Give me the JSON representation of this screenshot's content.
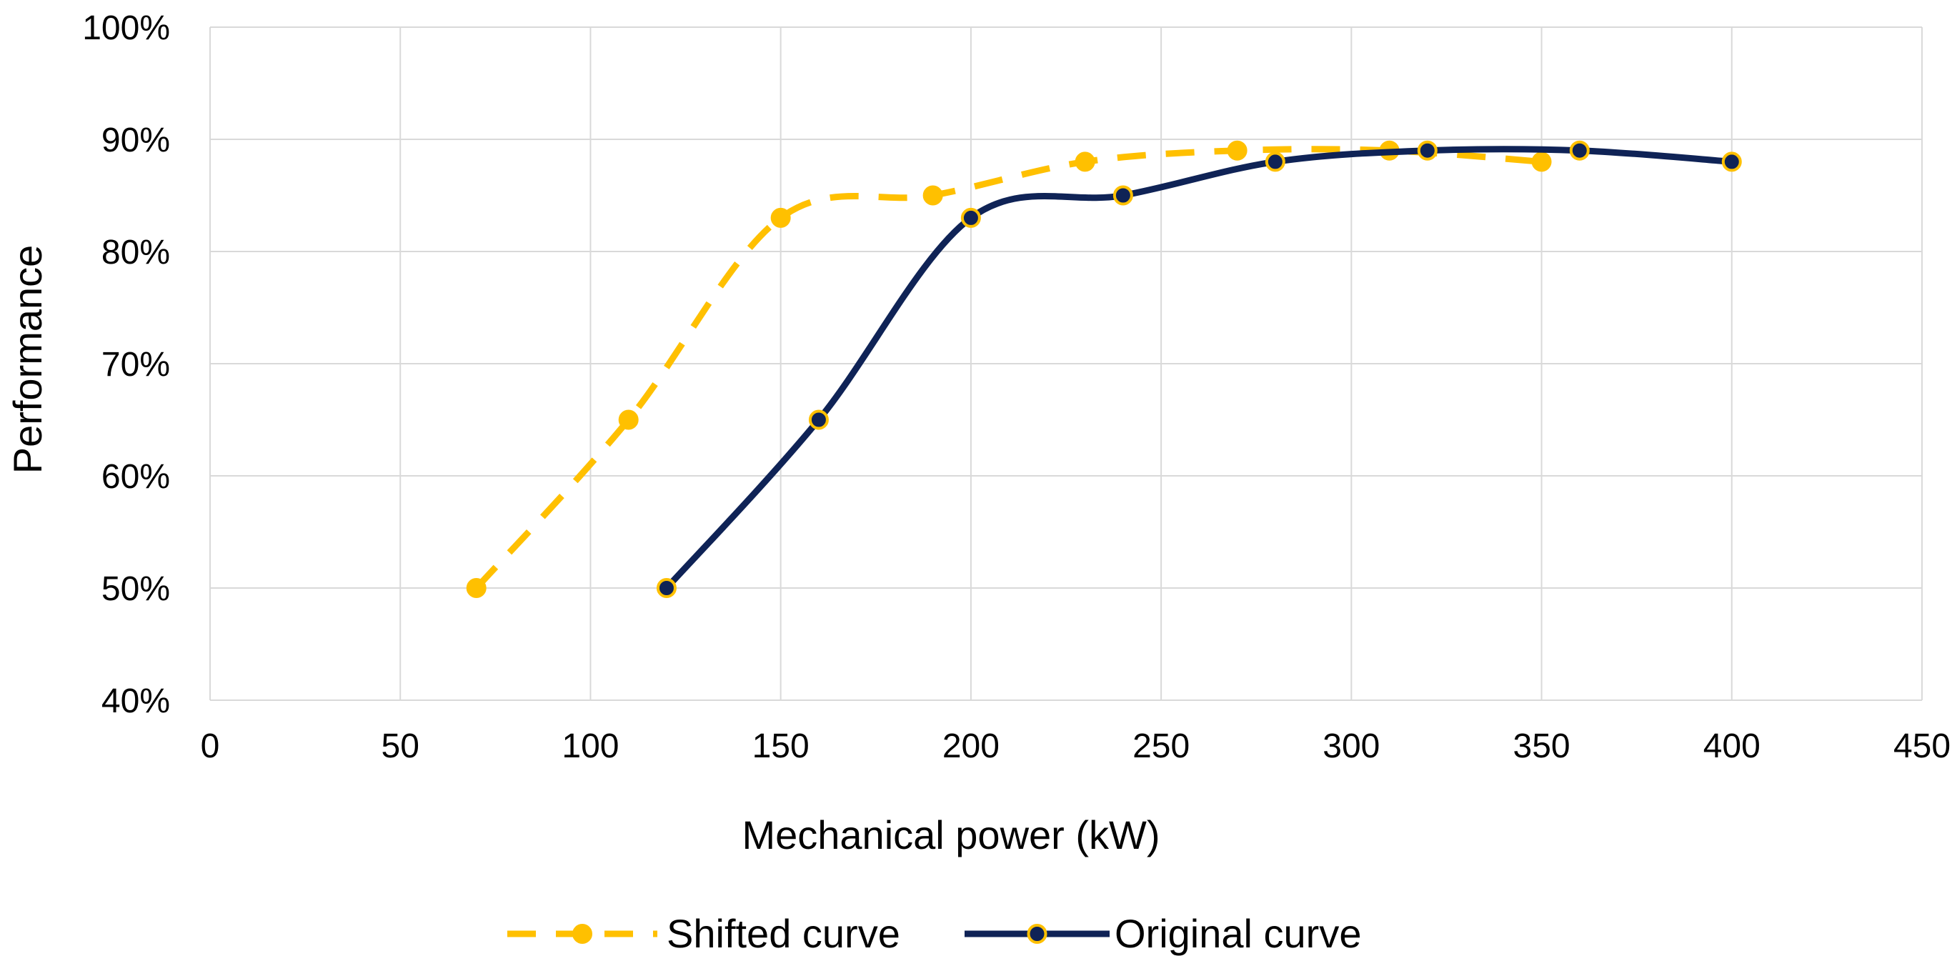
{
  "chart_data": {
    "type": "line",
    "title": "",
    "xlabel": "Mechanical power (kW)",
    "ylabel": "Performance",
    "xlim": [
      0,
      450
    ],
    "ylim": [
      40,
      100
    ],
    "x_ticks": [
      0,
      50,
      100,
      150,
      200,
      250,
      300,
      350,
      400,
      450
    ],
    "x_tick_labels": [
      "0",
      "50",
      "100",
      "150",
      "200",
      "250",
      "300",
      "350",
      "400",
      "450"
    ],
    "y_ticks": [
      40,
      50,
      60,
      70,
      80,
      90,
      100
    ],
    "y_tick_labels": [
      "40%",
      "50%",
      "60%",
      "70%",
      "80%",
      "90%",
      "100%"
    ],
    "grid": true,
    "legend_position": "bottom",
    "smooth": true,
    "series": [
      {
        "name": "Shifted curve",
        "style": "dashed",
        "color": "#FFC000",
        "marker_fill": "#FFC000",
        "marker_stroke": "#FFC000",
        "x": [
          70,
          110,
          150,
          190,
          230,
          270,
          310,
          350
        ],
        "y": [
          50,
          65,
          83,
          85,
          88,
          89,
          89,
          88
        ]
      },
      {
        "name": "Original curve",
        "style": "solid",
        "color": "#0F2356",
        "marker_fill": "#0F2356",
        "marker_stroke": "#FFC000",
        "x": [
          120,
          160,
          200,
          240,
          280,
          320,
          360,
          400
        ],
        "y": [
          50,
          65,
          83,
          85,
          88,
          89,
          89,
          88
        ]
      }
    ]
  }
}
